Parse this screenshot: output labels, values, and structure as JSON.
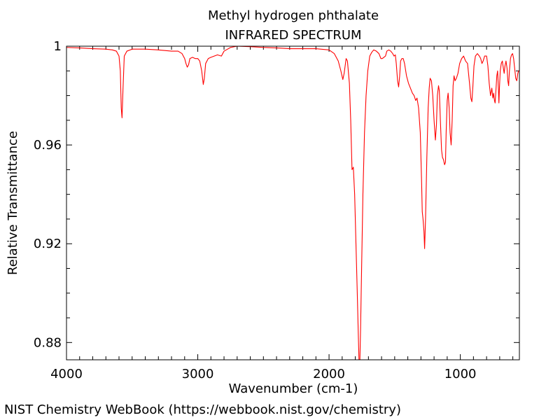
{
  "chart_data": {
    "type": "line",
    "title": "Methyl hydrogen phthalate",
    "subtitle": "INFRARED SPECTRUM",
    "xlabel": "Wavenumber (cm-1)",
    "ylabel": "Relative Transmittance",
    "xlim": [
      4000,
      550
    ],
    "ylim": [
      0.873,
      1.0
    ],
    "x_reversed": true,
    "x_ticks": [
      4000,
      3000,
      2000,
      1000
    ],
    "x_tick_labels": [
      "4000",
      "3000",
      "2000",
      "1000"
    ],
    "y_ticks": [
      0.88,
      0.92,
      0.96,
      1.0
    ],
    "y_tick_labels": [
      "0.88",
      "0.92",
      "0.96",
      "1"
    ],
    "grid": false,
    "series": [
      {
        "color": "#ff0000",
        "points": [
          [
            4000,
            0.9995
          ],
          [
            3900,
            0.9993
          ],
          [
            3800,
            0.999
          ],
          [
            3700,
            0.9988
          ],
          [
            3650,
            0.9985
          ],
          [
            3620,
            0.998
          ],
          [
            3600,
            0.996
          ],
          [
            3590,
            0.99
          ],
          [
            3583,
            0.975
          ],
          [
            3577,
            0.971
          ],
          [
            3570,
            0.982
          ],
          [
            3560,
            0.996
          ],
          [
            3540,
            0.998
          ],
          [
            3500,
            0.9988
          ],
          [
            3400,
            0.9988
          ],
          [
            3300,
            0.9985
          ],
          [
            3200,
            0.998
          ],
          [
            3150,
            0.998
          ],
          [
            3120,
            0.997
          ],
          [
            3100,
            0.995
          ],
          [
            3090,
            0.993
          ],
          [
            3080,
            0.9915
          ],
          [
            3070,
            0.9925
          ],
          [
            3060,
            0.995
          ],
          [
            3040,
            0.9955
          ],
          [
            3020,
            0.995
          ],
          [
            3000,
            0.995
          ],
          [
            2985,
            0.994
          ],
          [
            2970,
            0.99
          ],
          [
            2958,
            0.9845
          ],
          [
            2950,
            0.987
          ],
          [
            2940,
            0.993
          ],
          [
            2920,
            0.995
          ],
          [
            2900,
            0.9955
          ],
          [
            2850,
            0.9965
          ],
          [
            2820,
            0.996
          ],
          [
            2800,
            0.998
          ],
          [
            2750,
            0.9995
          ],
          [
            2700,
            1.0
          ],
          [
            2600,
            0.9998
          ],
          [
            2500,
            0.9995
          ],
          [
            2400,
            0.9993
          ],
          [
            2300,
            0.999
          ],
          [
            2200,
            0.999
          ],
          [
            2100,
            0.999
          ],
          [
            2000,
            0.9985
          ],
          [
            1960,
            0.997
          ],
          [
            1930,
            0.994
          ],
          [
            1910,
            0.99
          ],
          [
            1895,
            0.9865
          ],
          [
            1885,
            0.989
          ],
          [
            1870,
            0.995
          ],
          [
            1860,
            0.994
          ],
          [
            1845,
            0.985
          ],
          [
            1835,
            0.97
          ],
          [
            1825,
            0.95
          ],
          [
            1815,
            0.951
          ],
          [
            1805,
            0.94
          ],
          [
            1795,
            0.92
          ],
          [
            1785,
            0.9
          ],
          [
            1778,
            0.885
          ],
          [
            1772,
            0.873
          ],
          [
            1765,
            0.873
          ],
          [
            1760,
            0.885
          ],
          [
            1752,
            0.91
          ],
          [
            1742,
            0.94
          ],
          [
            1730,
            0.965
          ],
          [
            1718,
            0.98
          ],
          [
            1705,
            0.99
          ],
          [
            1690,
            0.996
          ],
          [
            1675,
            0.9975
          ],
          [
            1660,
            0.9985
          ],
          [
            1640,
            0.998
          ],
          [
            1620,
            0.997
          ],
          [
            1605,
            0.995
          ],
          [
            1595,
            0.995
          ],
          [
            1582,
            0.9955
          ],
          [
            1570,
            0.996
          ],
          [
            1560,
            0.998
          ],
          [
            1545,
            0.9985
          ],
          [
            1530,
            0.998
          ],
          [
            1515,
            0.997
          ],
          [
            1505,
            0.996
          ],
          [
            1495,
            0.9965
          ],
          [
            1488,
            0.993
          ],
          [
            1478,
            0.986
          ],
          [
            1470,
            0.9835
          ],
          [
            1462,
            0.988
          ],
          [
            1455,
            0.994
          ],
          [
            1445,
            0.995
          ],
          [
            1435,
            0.995
          ],
          [
            1425,
            0.993
          ],
          [
            1410,
            0.988
          ],
          [
            1395,
            0.985
          ],
          [
            1380,
            0.983
          ],
          [
            1365,
            0.981
          ],
          [
            1352,
            0.98
          ],
          [
            1340,
            0.978
          ],
          [
            1330,
            0.979
          ],
          [
            1318,
            0.975
          ],
          [
            1305,
            0.965
          ],
          [
            1295,
            0.945
          ],
          [
            1290,
            0.933
          ],
          [
            1284,
            0.93
          ],
          [
            1277,
            0.925
          ],
          [
            1272,
            0.918
          ],
          [
            1265,
            0.93
          ],
          [
            1255,
            0.955
          ],
          [
            1245,
            0.975
          ],
          [
            1237,
            0.983
          ],
          [
            1230,
            0.987
          ],
          [
            1220,
            0.986
          ],
          [
            1210,
            0.98
          ],
          [
            1200,
            0.97
          ],
          [
            1190,
            0.962
          ],
          [
            1182,
            0.968
          ],
          [
            1175,
            0.98
          ],
          [
            1166,
            0.984
          ],
          [
            1160,
            0.982
          ],
          [
            1152,
            0.97
          ],
          [
            1143,
            0.958
          ],
          [
            1136,
            0.955
          ],
          [
            1128,
            0.954
          ],
          [
            1120,
            0.952
          ],
          [
            1113,
            0.953
          ],
          [
            1108,
            0.965
          ],
          [
            1100,
            0.978
          ],
          [
            1093,
            0.981
          ],
          [
            1085,
            0.975
          ],
          [
            1078,
            0.965
          ],
          [
            1070,
            0.96
          ],
          [
            1062,
            0.97
          ],
          [
            1055,
            0.984
          ],
          [
            1048,
            0.988
          ],
          [
            1040,
            0.986
          ],
          [
            1030,
            0.987
          ],
          [
            1018,
            0.989
          ],
          [
            1005,
            0.993
          ],
          [
            990,
            0.995
          ],
          [
            975,
            0.996
          ],
          [
            960,
            0.994
          ],
          [
            945,
            0.993
          ],
          [
            930,
            0.985
          ],
          [
            920,
            0.979
          ],
          [
            912,
            0.9775
          ],
          [
            905,
            0.983
          ],
          [
            896,
            0.992
          ],
          [
            885,
            0.996
          ],
          [
            870,
            0.997
          ],
          [
            855,
            0.996
          ],
          [
            845,
            0.995
          ],
          [
            835,
            0.993
          ],
          [
            826,
            0.994
          ],
          [
            815,
            0.996
          ],
          [
            800,
            0.996
          ],
          [
            790,
            0.992
          ],
          [
            780,
            0.985
          ],
          [
            770,
            0.98
          ],
          [
            760,
            0.983
          ],
          [
            752,
            0.979
          ],
          [
            746,
            0.981
          ],
          [
            740,
            0.978
          ],
          [
            735,
            0.977
          ],
          [
            730,
            0.981
          ],
          [
            722,
            0.988
          ],
          [
            716,
            0.99
          ],
          [
            710,
            0.983
          ],
          [
            706,
            0.977
          ],
          [
            702,
            0.983
          ],
          [
            696,
            0.99
          ],
          [
            688,
            0.993
          ],
          [
            680,
            0.994
          ],
          [
            672,
            0.991
          ],
          [
            666,
            0.989
          ],
          [
            660,
            0.992
          ],
          [
            652,
            0.994
          ],
          [
            644,
            0.991
          ],
          [
            638,
            0.986
          ],
          [
            632,
            0.984
          ],
          [
            626,
            0.99
          ],
          [
            618,
            0.995
          ],
          [
            610,
            0.9965
          ],
          [
            602,
            0.997
          ],
          [
            594,
            0.995
          ],
          [
            586,
            0.991
          ],
          [
            578,
            0.987
          ],
          [
            570,
            0.986
          ],
          [
            562,
            0.989
          ],
          [
            556,
            0.99
          ],
          [
            550,
            0.99
          ]
        ]
      }
    ]
  },
  "credit": "NIST Chemistry WebBook (https://webbook.nist.gov/chemistry)"
}
